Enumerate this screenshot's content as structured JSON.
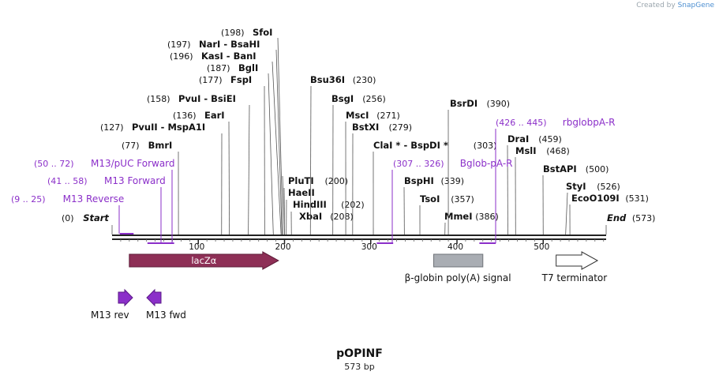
{
  "credit": {
    "prefix": "Created by",
    "brand": "SnapGene"
  },
  "plasmid": {
    "name": "pOPINF",
    "length_label": "573 bp",
    "length": 573
  },
  "colors": {
    "text": "#111111",
    "primer": "#8b2fc9",
    "site_line": "#555555",
    "lacZa": "#8e2f56",
    "polyA": "#a9adb3",
    "terminator": "#ffffff",
    "backbone": "#222222"
  },
  "ruler": {
    "ticks": [
      "100",
      "200",
      "300",
      "400",
      "500"
    ]
  },
  "sites": [
    {
      "id": "start",
      "name": "Start",
      "pos_label": "(0)",
      "pos": 0,
      "italic": true
    },
    {
      "id": "bmri",
      "name": "BmrI",
      "pos_label": "(77)",
      "pos": 77
    },
    {
      "id": "pvuii",
      "name": "PvuII - MspA1I",
      "pos_label": "(127)",
      "pos": 127
    },
    {
      "id": "eari",
      "name": "EarI",
      "pos_label": "(136)",
      "pos": 136
    },
    {
      "id": "pvui",
      "name": "PvuI - BsiEI",
      "pos_label": "(158)",
      "pos": 158
    },
    {
      "id": "fspi",
      "name": "FspI",
      "pos_label": "(177)",
      "pos": 177
    },
    {
      "id": "bgli",
      "name": "BglI",
      "pos_label": "(187)",
      "pos": 187
    },
    {
      "id": "kasi",
      "name": "KasI - BanI",
      "pos_label": "(196)",
      "pos": 196
    },
    {
      "id": "nari",
      "name": "NarI - BsaHI",
      "pos_label": "(197)",
      "pos": 197
    },
    {
      "id": "sfoi",
      "name": "SfoI",
      "pos_label": "(198)",
      "pos": 198
    },
    {
      "id": "pluti",
      "name": "PluTI",
      "pos_label": "(200)",
      "pos": 200
    },
    {
      "id": "haeii",
      "name": "HaeII",
      "pos_label": "",
      "pos": 200
    },
    {
      "id": "hindiii",
      "name": "HindIII",
      "pos_label": "(202)",
      "pos": 202
    },
    {
      "id": "xbai",
      "name": "XbaI",
      "pos_label": "(208)",
      "pos": 208
    },
    {
      "id": "bsu36i",
      "name": "Bsu36I",
      "pos_label": "(230)",
      "pos": 230
    },
    {
      "id": "bsgi",
      "name": "BsgI",
      "pos_label": "(256)",
      "pos": 256
    },
    {
      "id": "msci",
      "name": "MscI",
      "pos_label": "(271)",
      "pos": 271
    },
    {
      "id": "bstxi",
      "name": "BstXI",
      "pos_label": "(279)",
      "pos": 279
    },
    {
      "id": "clai",
      "name": "ClaI * - BspDI *",
      "pos_label": "(303)",
      "pos": 303
    },
    {
      "id": "bsphi",
      "name": "BspHI",
      "pos_label": "(339)",
      "pos": 339
    },
    {
      "id": "tsoi",
      "name": "TsoI",
      "pos_label": "(357)",
      "pos": 357
    },
    {
      "id": "mmei",
      "name": "MmeI",
      "pos_label": "(386)",
      "pos": 386
    },
    {
      "id": "bsrdi",
      "name": "BsrDI",
      "pos_label": "(390)",
      "pos": 390
    },
    {
      "id": "drai",
      "name": "DraI",
      "pos_label": "(459)",
      "pos": 459
    },
    {
      "id": "msli",
      "name": "MslI",
      "pos_label": "(468)",
      "pos": 468
    },
    {
      "id": "bstapi",
      "name": "BstAPI",
      "pos_label": "(500)",
      "pos": 500
    },
    {
      "id": "styi",
      "name": "StyI",
      "pos_label": "(526)",
      "pos": 526
    },
    {
      "id": "eco0109i",
      "name": "EcoO109I",
      "pos_label": "(531)",
      "pos": 531
    },
    {
      "id": "end",
      "name": "End",
      "pos_label": "(573)",
      "pos": 573,
      "italic": true
    }
  ],
  "primers": [
    {
      "id": "m13rev-site",
      "range_label": "(9 .. 25)",
      "name": "M13 Reverse",
      "start": 9,
      "end": 25
    },
    {
      "id": "m13fwd-site",
      "range_label": "(41 .. 58)",
      "name": "M13 Forward",
      "start": 41,
      "end": 58
    },
    {
      "id": "m13puc-site",
      "range_label": "(50 .. 72)",
      "name": "M13/pUC Forward",
      "start": 50,
      "end": 72
    },
    {
      "id": "bglob-site",
      "range_label": "(307 .. 326)",
      "name": "Bglob-pA-R",
      "start": 307,
      "end": 326
    },
    {
      "id": "rbglob-site",
      "range_label": "(426 .. 445)",
      "name": "rbglobpA-R",
      "start": 426,
      "end": 445
    }
  ],
  "features": [
    {
      "id": "lacza",
      "name": "lacZα",
      "start": 20,
      "end": 193,
      "kind": "arrow-right"
    },
    {
      "id": "polya",
      "name": "β-globin poly(A) signal",
      "start": 373,
      "end": 430,
      "kind": "box"
    },
    {
      "id": "t7term",
      "name": "T7 terminator",
      "start": 515,
      "end": 563,
      "kind": "arrow-right-open"
    }
  ],
  "primer_arrows": [
    {
      "id": "m13-rev-arrow",
      "label": "M13 rev",
      "direction": "right"
    },
    {
      "id": "m13-fwd-arrow",
      "label": "M13 fwd",
      "direction": "left"
    }
  ]
}
